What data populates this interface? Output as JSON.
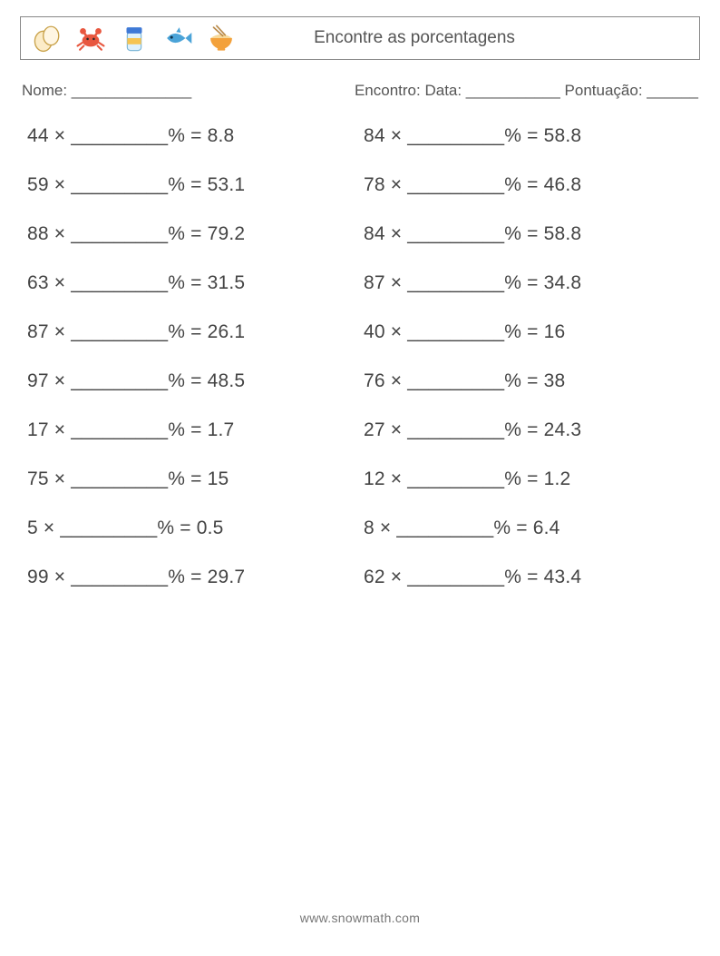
{
  "header": {
    "title": "Encontre as porcentagens",
    "icons": [
      "egg",
      "crab",
      "jar",
      "fish",
      "bowl"
    ]
  },
  "meta": {
    "name_label": "Nome: ______________",
    "right_label": "Encontro: Data: ___________   Pontuação: ______"
  },
  "blank": "_________",
  "multiply_sign": "×",
  "percent_sign": "%",
  "equals_sign": "=",
  "problems": {
    "left": [
      {
        "a": "44",
        "r": "8.8"
      },
      {
        "a": "59",
        "r": "53.1"
      },
      {
        "a": "88",
        "r": "79.2"
      },
      {
        "a": "63",
        "r": "31.5"
      },
      {
        "a": "87",
        "r": "26.1"
      },
      {
        "a": "97",
        "r": "48.5"
      },
      {
        "a": "17",
        "r": "1.7"
      },
      {
        "a": "75",
        "r": "15"
      },
      {
        "a": "5",
        "r": "0.5"
      },
      {
        "a": "99",
        "r": "29.7"
      }
    ],
    "right": [
      {
        "a": "84",
        "r": "58.8"
      },
      {
        "a": "78",
        "r": "46.8"
      },
      {
        "a": "84",
        "r": "58.8"
      },
      {
        "a": "87",
        "r": "34.8"
      },
      {
        "a": "40",
        "r": "16"
      },
      {
        "a": "76",
        "r": "38"
      },
      {
        "a": "27",
        "r": "24.3"
      },
      {
        "a": "12",
        "r": "1.2"
      },
      {
        "a": "8",
        "r": "6.4"
      },
      {
        "a": "62",
        "r": "43.4"
      }
    ]
  },
  "footer": "www.snowmath.com",
  "colors": {
    "text": "#444444",
    "border": "#888888",
    "egg_fill": "#fcecc8",
    "egg_stroke": "#c9a24a",
    "crab": "#e8573f",
    "jar_body": "#dff1fb",
    "jar_lid": "#3f79d6",
    "jar_label": "#f6c451",
    "fish": "#4aa3d8",
    "bowl": "#f3a13b",
    "noodle": "#f7d99a",
    "chop": "#b98a4a"
  }
}
